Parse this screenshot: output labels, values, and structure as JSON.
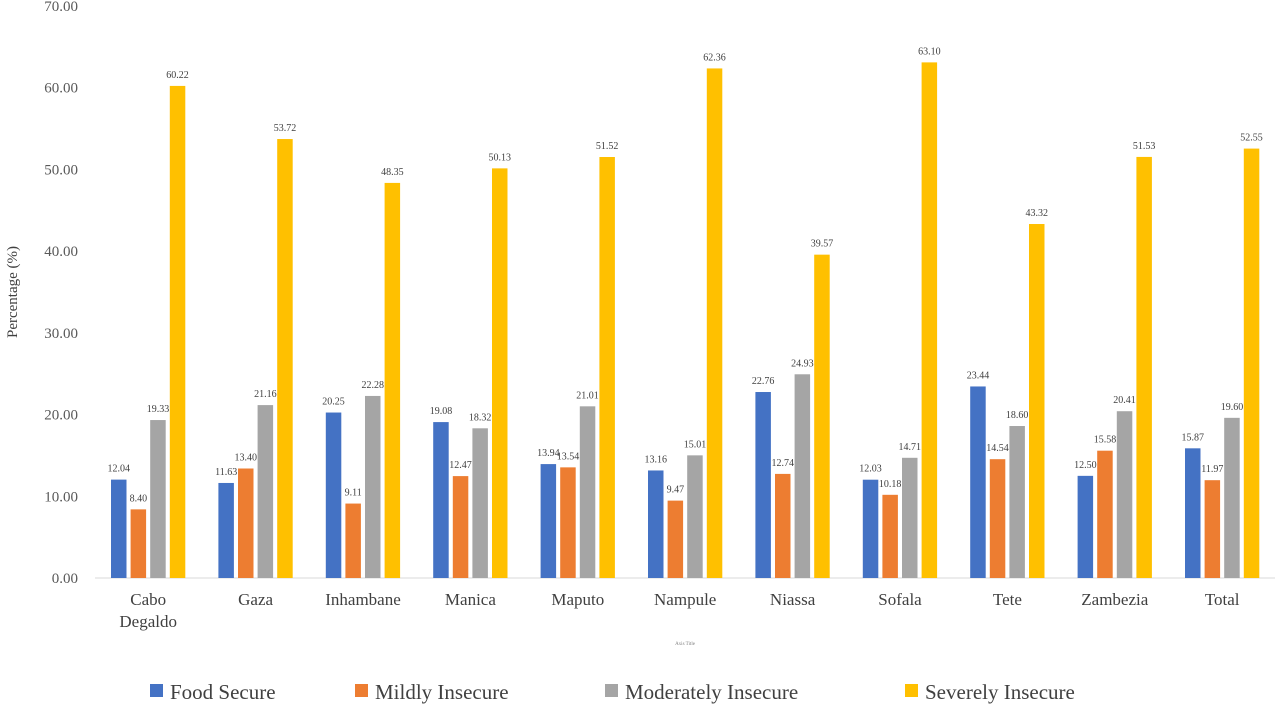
{
  "chart_data": {
    "type": "bar",
    "title": "",
    "xlabel": "Axis Title",
    "ylabel": "Percentage (%)",
    "ylim": [
      0,
      70
    ],
    "yticks": [
      "0.00",
      "10.00",
      "20.00",
      "30.00",
      "40.00",
      "50.00",
      "60.00",
      "70.00"
    ],
    "grid": false,
    "legend_position": "bottom",
    "categories": [
      "Cabo Degaldo",
      "Gaza",
      "Inhambane",
      "Manica",
      "Maputo",
      "Nampule",
      "Niassa",
      "Sofala",
      "Tete",
      "Zambezia",
      "Total"
    ],
    "series": [
      {
        "name": "Food Secure",
        "color": "#4472C4",
        "values": [
          12.04,
          11.63,
          20.25,
          19.08,
          13.94,
          13.16,
          22.76,
          12.03,
          23.44,
          12.5,
          15.87
        ]
      },
      {
        "name": "Mildly Insecure",
        "color": "#ED7D31",
        "values": [
          8.4,
          13.4,
          9.11,
          12.47,
          13.54,
          9.47,
          12.74,
          10.18,
          14.54,
          15.58,
          11.97
        ]
      },
      {
        "name": "Moderately Insecure",
        "color": "#A5A5A5",
        "values": [
          19.33,
          21.16,
          22.28,
          18.32,
          21.01,
          15.01,
          24.93,
          14.71,
          18.6,
          20.41,
          19.6
        ]
      },
      {
        "name": "Severely Insecure",
        "color": "#FFC000",
        "values": [
          60.22,
          53.72,
          48.35,
          50.13,
          51.52,
          62.36,
          39.57,
          63.1,
          43.32,
          51.53,
          52.55
        ]
      }
    ]
  }
}
